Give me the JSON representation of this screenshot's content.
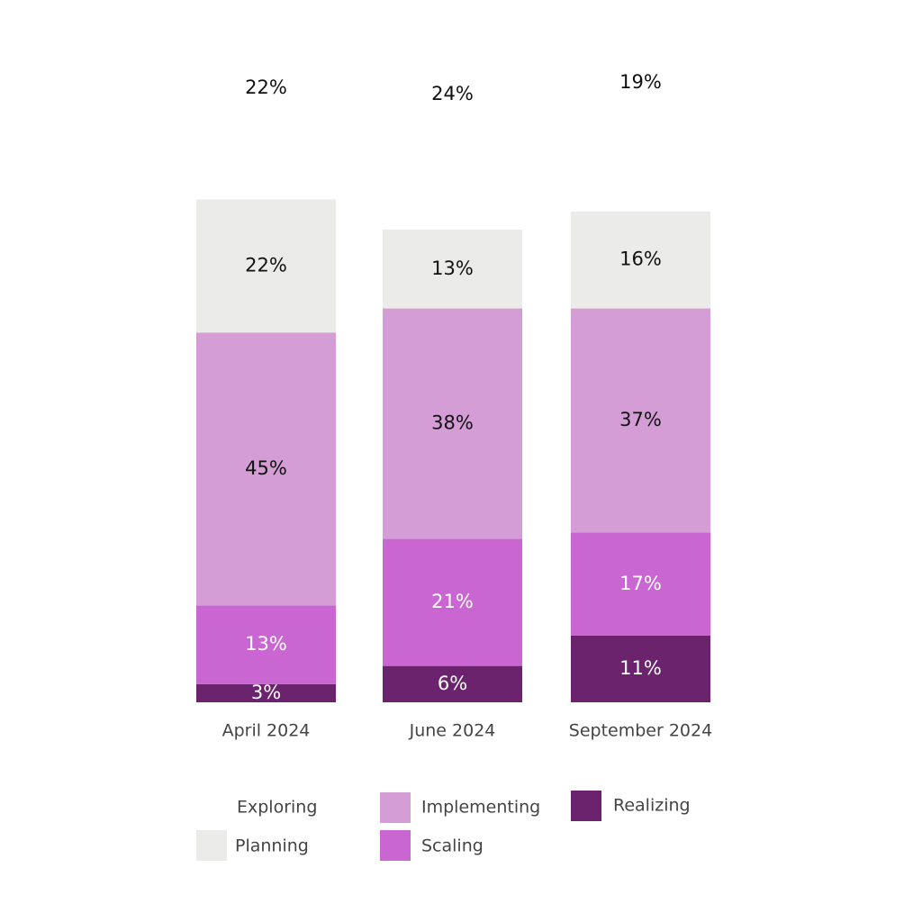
{
  "chart_data": {
    "type": "bar",
    "stacked": true,
    "categories": [
      "April 2024",
      "June 2024",
      "September 2024"
    ],
    "series": [
      {
        "name": "Exploring",
        "values": [
          22,
          24,
          19
        ],
        "color": "#ffffff",
        "label_color": "#111111",
        "shown_in_bar": false
      },
      {
        "name": "Planning",
        "values": [
          22,
          13,
          16
        ],
        "color": "#ebebe9",
        "label_color": "#111111",
        "shown_in_bar": true
      },
      {
        "name": "Implementing",
        "values": [
          45,
          38,
          37
        ],
        "color": "#d49dd6",
        "label_color": "#111111",
        "shown_in_bar": true
      },
      {
        "name": "Scaling",
        "values": [
          13,
          21,
          17
        ],
        "color": "#c966d2",
        "label_color": "#ffffff",
        "shown_in_bar": true
      },
      {
        "name": "Realizing",
        "values": [
          3,
          6,
          11
        ],
        "color": "#6b236e",
        "label_color": "#ffffff",
        "shown_in_bar": true
      }
    ],
    "value_suffix": "%",
    "title": "",
    "xlabel": "",
    "ylabel": "",
    "grid": false,
    "legend_position": "bottom"
  }
}
